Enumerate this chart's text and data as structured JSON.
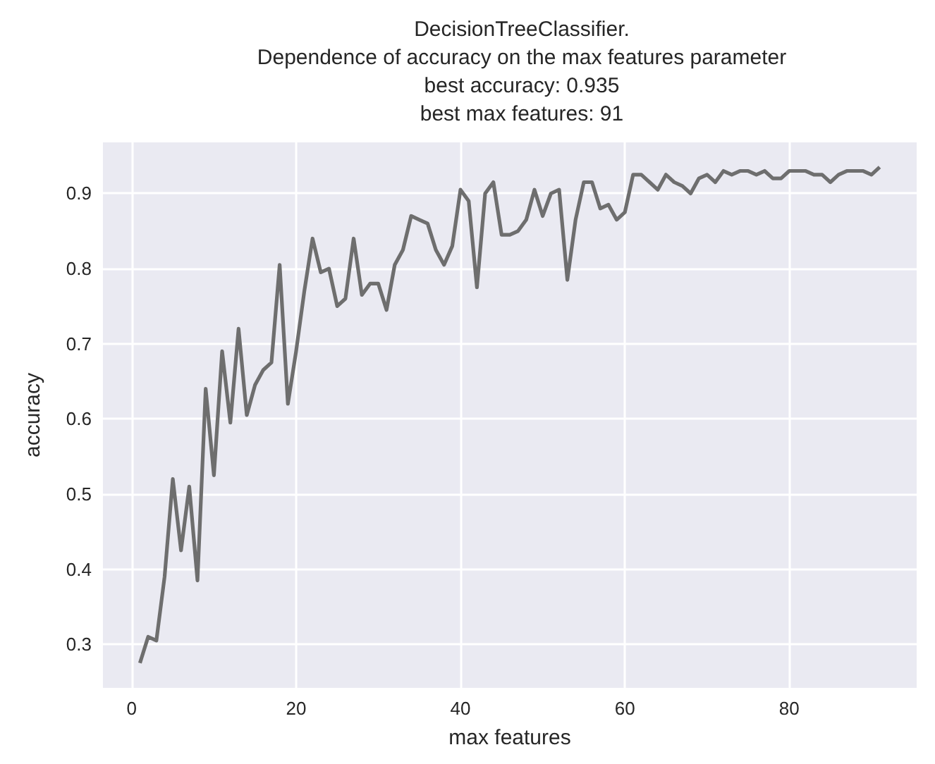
{
  "chart_data": {
    "type": "line",
    "title": "DecisionTreeClassifier.\nDependence of accuracy on the max features parameter\nbest accuracy: 0.935\nbest max features: 91",
    "xlabel": "max features",
    "ylabel": "accuracy",
    "x": [
      1,
      2,
      3,
      4,
      5,
      6,
      7,
      8,
      9,
      10,
      11,
      12,
      13,
      14,
      15,
      16,
      17,
      18,
      19,
      20,
      21,
      22,
      23,
      24,
      25,
      26,
      27,
      28,
      29,
      30,
      31,
      32,
      33,
      34,
      35,
      36,
      37,
      38,
      39,
      40,
      41,
      42,
      43,
      44,
      45,
      46,
      47,
      48,
      49,
      50,
      51,
      52,
      53,
      54,
      55,
      56,
      57,
      58,
      59,
      60,
      61,
      62,
      63,
      64,
      65,
      66,
      67,
      68,
      69,
      70,
      71,
      72,
      73,
      74,
      75,
      76,
      77,
      78,
      79,
      80,
      81,
      82,
      83,
      84,
      85,
      86,
      87,
      88,
      89,
      90,
      91
    ],
    "series": [
      {
        "color": "#6e6e6e",
        "values": [
          0.275,
          0.31,
          0.305,
          0.39,
          0.52,
          0.425,
          0.51,
          0.385,
          0.64,
          0.525,
          0.69,
          0.595,
          0.72,
          0.605,
          0.645,
          0.665,
          0.675,
          0.805,
          0.62,
          0.69,
          0.77,
          0.84,
          0.795,
          0.8,
          0.75,
          0.76,
          0.84,
          0.765,
          0.78,
          0.78,
          0.745,
          0.805,
          0.825,
          0.87,
          0.865,
          0.86,
          0.825,
          0.805,
          0.83,
          0.905,
          0.89,
          0.775,
          0.9,
          0.915,
          0.845,
          0.845,
          0.85,
          0.865,
          0.905,
          0.87,
          0.9,
          0.905,
          0.785,
          0.865,
          0.915,
          0.915,
          0.88,
          0.885,
          0.865,
          0.875,
          0.925,
          0.925,
          0.915,
          0.905,
          0.925,
          0.915,
          0.91,
          0.9,
          0.92,
          0.925,
          0.915,
          0.93,
          0.925,
          0.93,
          0.93,
          0.925,
          0.93,
          0.92,
          0.92,
          0.93,
          0.93,
          0.93,
          0.925,
          0.925,
          0.915,
          0.925,
          0.93,
          0.93,
          0.93,
          0.925,
          0.935
        ]
      }
    ],
    "xlim": [
      -3.5,
      95.5
    ],
    "ylim": [
      0.242,
      0.968
    ],
    "xticks": [
      0,
      20,
      40,
      60,
      80
    ],
    "yticks": [
      0.3,
      0.4,
      0.5,
      0.6,
      0.7,
      0.8,
      0.9
    ],
    "grid": true,
    "marker": "none",
    "line_style": "solid"
  }
}
